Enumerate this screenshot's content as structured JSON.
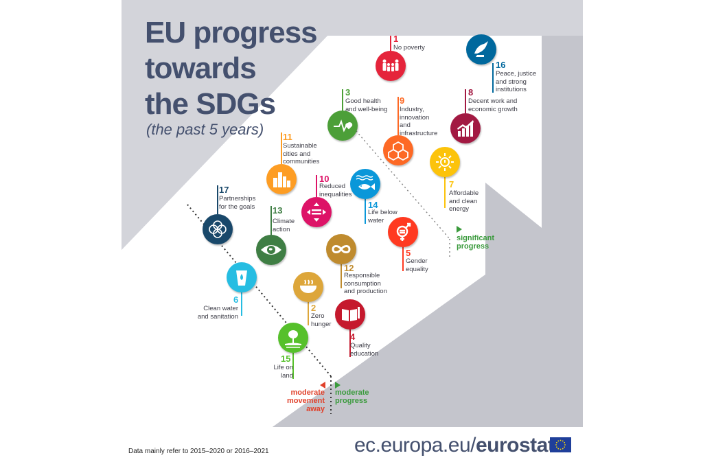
{
  "title_lines": [
    "EU progress",
    "towards",
    "the SDGs"
  ],
  "subtitle": "(the past 5 years)",
  "colors": {
    "background_panel": "#d3d4da",
    "arrow": "#ffffff",
    "title": "#44506e",
    "significant_progress": "#3a9a3c",
    "moderate_progress": "#3a9a3c",
    "moderate_movement_away": "#e0412b"
  },
  "goals": [
    {
      "number": "1",
      "label": "No poverty",
      "color": "#e5243b",
      "icon": "family-icon"
    },
    {
      "number": "2",
      "label": "Zero\nhunger",
      "color": "#dda63a",
      "icon": "bowl-icon"
    },
    {
      "number": "3",
      "label": "Good health\nand well-being",
      "color": "#4c9f38",
      "icon": "heartbeat-icon"
    },
    {
      "number": "4",
      "label": "Quality\neducation",
      "color": "#c5192d",
      "icon": "book-pencil-icon"
    },
    {
      "number": "5",
      "label": "Gender\nequality",
      "color": "#ff3a21",
      "icon": "gender-equality-icon"
    },
    {
      "number": "6",
      "label": "Clean water\nand sanitation",
      "color": "#26bde2",
      "icon": "water-drop-icon"
    },
    {
      "number": "7",
      "label": "Affordable\nand clean\nenergy",
      "color": "#fcc30b",
      "icon": "sun-power-icon"
    },
    {
      "number": "8",
      "label": "Decent work and\neconomic growth",
      "color": "#a21942",
      "icon": "growth-chart-icon"
    },
    {
      "number": "9",
      "label": "Industry,\ninnovation\nand\ninfrastructure",
      "color": "#fd6925",
      "icon": "cubes-icon"
    },
    {
      "number": "10",
      "label": "Reduced\ninequalities",
      "color": "#dd1367",
      "icon": "equality-arrows-icon"
    },
    {
      "number": "11",
      "label": "Sustainable\ncities and\ncommunities",
      "color": "#fd9d24",
      "icon": "city-icon"
    },
    {
      "number": "12",
      "label": "Responsible\nconsumption\nand production",
      "color": "#bf8b2e",
      "icon": "infinity-icon"
    },
    {
      "number": "13",
      "label": "Climate\naction",
      "color": "#3f7e44",
      "icon": "eye-globe-icon"
    },
    {
      "number": "14",
      "label": "Life below\nwater",
      "color": "#0a97d9",
      "icon": "fish-icon"
    },
    {
      "number": "15",
      "label": "Life on\nland",
      "color": "#56c02b",
      "icon": "tree-icon"
    },
    {
      "number": "16",
      "label": "Peace, justice\nand strong\ninstitutions",
      "color": "#00689d",
      "icon": "dove-icon"
    },
    {
      "number": "17",
      "label": "Partnerships\nfor the goals",
      "color": "#19486a",
      "icon": "rings-icon"
    }
  ],
  "axis_labels": {
    "significant": "significant\nprogress",
    "moderate_progress": "moderate\nprogress",
    "moderate_away": "moderate\nmovement\naway"
  },
  "footer": {
    "note": "Data mainly refer to 2015–2020 or 2016–2021",
    "url_prefix": "ec.europa.eu/",
    "url_brand": "eurostat"
  }
}
